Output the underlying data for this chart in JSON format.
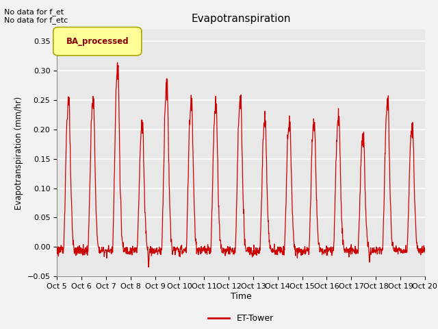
{
  "title": "Evapotranspiration",
  "ylabel": "Evapotranspiration (mm/hr)",
  "xlabel": "Time",
  "annotation_lines": [
    "No data for f_et",
    "No data for f_etc"
  ],
  "legend_label": "ET-Tower",
  "legend_box_label": "BA_processed",
  "ylim": [
    -0.05,
    0.37
  ],
  "line_color": "#cc0000",
  "background_color": "#e8e8e8",
  "grid_color": "#ffffff",
  "legend_box_color": "#ffff99",
  "legend_box_edge": "#aaa800",
  "x_tick_labels": [
    "Oct 5",
    "Oct 6",
    "Oct 7",
    "Oct 8",
    "Oct 9",
    "Oct 10",
    "Oct 11",
    "Oct 12",
    "Oct 13",
    "Oct 14",
    "Oct 15",
    "Oct 16",
    "Oct 17",
    "Oct 18",
    "Oct 19",
    "Oct 20"
  ],
  "num_days": 15,
  "points_per_day": 96,
  "day_peaks": [
    0.26,
    0.26,
    0.32,
    0.22,
    0.29,
    0.26,
    0.255,
    0.265,
    0.225,
    0.225,
    0.225,
    0.23,
    0.198,
    0.26,
    0.218
  ],
  "valley_dips": [
    -0.008,
    -0.008,
    -0.008,
    -0.04,
    -0.008,
    -0.008,
    -0.008,
    -0.008,
    -0.008,
    -0.008,
    -0.008,
    -0.008,
    -0.03,
    -0.008,
    -0.008
  ]
}
